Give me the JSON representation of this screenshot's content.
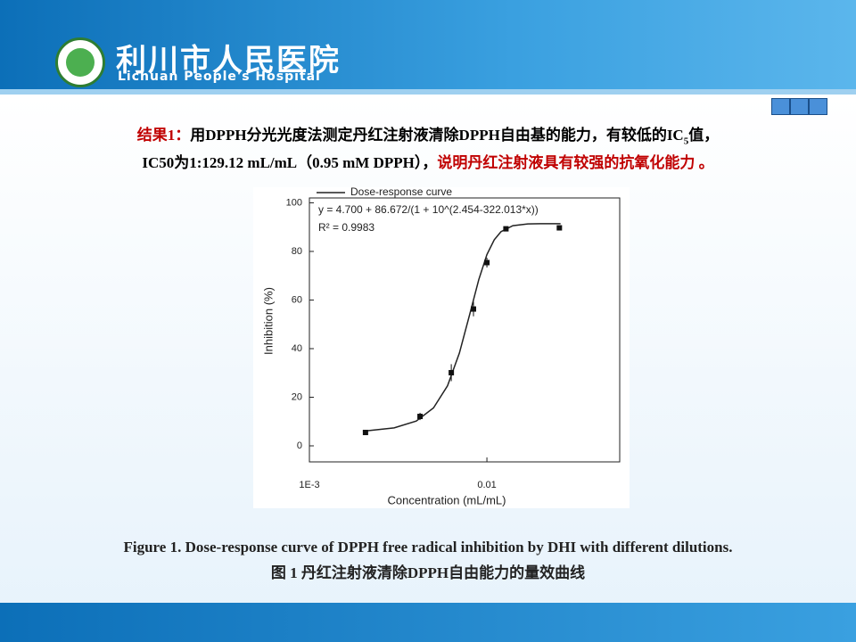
{
  "header": {
    "title": "利川市人民医院",
    "subtitle": "Lichuan People's Hospital"
  },
  "result": {
    "label": "结果1：",
    "line1": "用DPPH分光光度法测定丹红注射液清除DPPH自由基的能力，有较低的IC",
    "line1_sub": "5",
    "line1_end": "值，",
    "line2": "IC50为1:129.12 mL/mL（0.95 mM DPPH），",
    "line2_highlight": "说明丹红注射液具有较强的抗氧化能力 。"
  },
  "chart_data": {
    "type": "line",
    "x_label": "Concentration (mL/mL)",
    "y_label": "Inhibition (%)",
    "xscale": "log",
    "xlim": [
      0.001,
      0.056
    ],
    "ylim": [
      -6.6,
      102
    ],
    "xticks": [
      {
        "value": 0.001,
        "label": "1E-3"
      },
      {
        "value": 0.01,
        "label": "0.01"
      }
    ],
    "yticks": [
      0,
      20,
      40,
      60,
      80,
      100
    ],
    "legend": "upper left",
    "series": [
      {
        "name": "Dose-response curve",
        "color": "#222222",
        "x": [
          0.002,
          0.003,
          0.004,
          0.005,
          0.006,
          0.007,
          0.008,
          0.009,
          0.01,
          0.011,
          0.012,
          0.014,
          0.017,
          0.02,
          0.026
        ],
        "values": [
          6.0,
          7.4,
          10.2,
          15.6,
          24.7,
          38.2,
          54.1,
          68.4,
          78.7,
          84.8,
          88.1,
          90.6,
          91.3,
          91.4,
          91.4
        ]
      }
    ],
    "points": {
      "color": "#111111",
      "x": [
        0.00207,
        0.0042,
        0.0063,
        0.0084,
        0.01,
        0.0128,
        0.0256
      ],
      "values": [
        5.5,
        12.1,
        30.1,
        56.3,
        75.4,
        89.3,
        89.7
      ],
      "errors": [
        1,
        1.5,
        3.5,
        3,
        2,
        1,
        1
      ]
    },
    "annotations": [
      "y = 4.700 + 86.672/(1 + 10^(2.454-322.013*x))",
      "R² = 0.9983"
    ]
  },
  "caption": {
    "english": "Figure 1. Dose-response curve of DPPH free radical inhibition by DHI with different dilutions.",
    "chinese": "图 1 丹红注射液清除DPPH自由能力的量效曲线"
  }
}
